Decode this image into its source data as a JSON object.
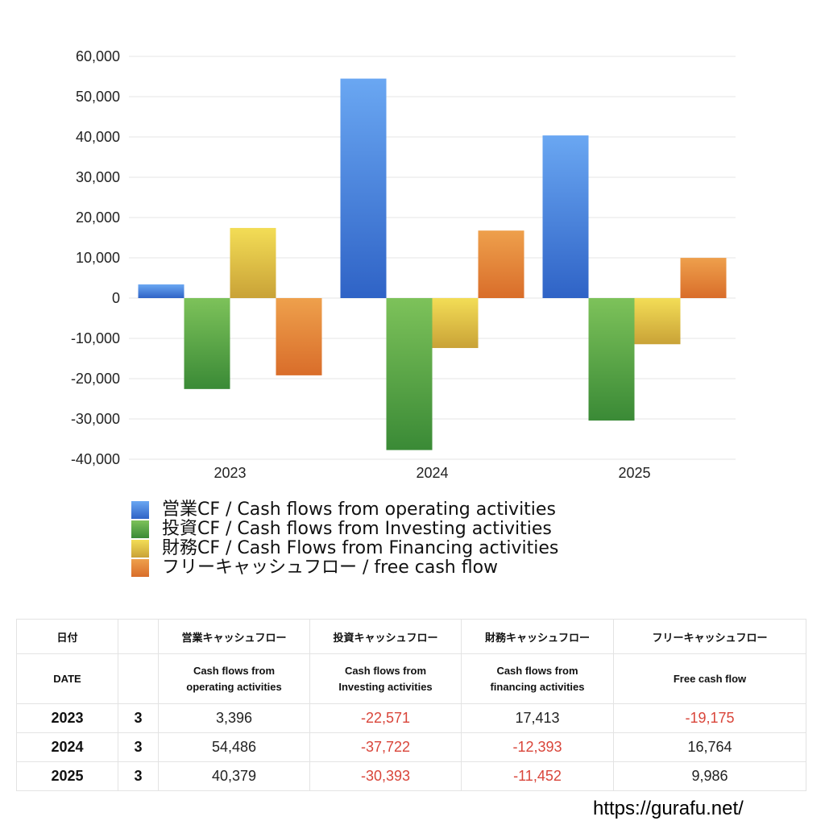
{
  "chart_data": {
    "type": "bar",
    "categories": [
      "2023",
      "2024",
      "2025"
    ],
    "series": [
      {
        "name": "営業CF / Cash flows from operating activities",
        "values": [
          3396,
          54486,
          40379
        ],
        "color_top": "#6aa7f2",
        "color_bottom": "#2f63c6"
      },
      {
        "name": "投資CF / Cash flows from Investing activities",
        "values": [
          -22571,
          -37722,
          -30393
        ],
        "color_top": "#7dc25a",
        "color_bottom": "#3a8a36"
      },
      {
        "name": "財務CF / Cash Flows from Financing activities",
        "values": [
          17413,
          -12393,
          -11452
        ],
        "color_top": "#f3dd56",
        "color_bottom": "#c9a237"
      },
      {
        "name": "フリーキャッシュフロー / free cash flow",
        "values": [
          -19175,
          16764,
          9986
        ],
        "color_top": "#eea04c",
        "color_bottom": "#d96d2a"
      }
    ],
    "ylim": [
      -40000,
      60000
    ],
    "yticks": [
      "60,000",
      "50,000",
      "40,000",
      "30,000",
      "20,000",
      "10,000",
      "0",
      "-10,000",
      "-20,000",
      "-30,000",
      "-40,000"
    ],
    "grid": true,
    "legend_position": "bottom-left"
  },
  "table": {
    "header1": {
      "date": "日付",
      "operating": "営業キャッシュフロー",
      "investing": "投資キャッシュフロー",
      "financing": "財務キャッシュフロー",
      "free": "フリーキャッシュフロー"
    },
    "header2": {
      "date": "DATE",
      "operating_l1": "Cash flows from",
      "operating_l2": "operating activities",
      "investing_l1": "Cash flows from",
      "investing_l2": "Investing activities",
      "financing_l1": "Cash flows from",
      "financing_l2": "financing activities",
      "free": "Free cash flow"
    },
    "rows": [
      {
        "year": "2023",
        "month": "3",
        "operating": "3,396",
        "investing": "-22,571",
        "financing": "17,413",
        "free": "-19,175"
      },
      {
        "year": "2024",
        "month": "3",
        "operating": "54,486",
        "investing": "-37,722",
        "financing": "-12,393",
        "free": "16,764"
      },
      {
        "year": "2025",
        "month": "3",
        "operating": "40,379",
        "investing": "-30,393",
        "financing": "-11,452",
        "free": "9,986"
      }
    ],
    "negative_color": "#d9453a"
  },
  "footer": {
    "url": "https://gurafu.net/"
  }
}
